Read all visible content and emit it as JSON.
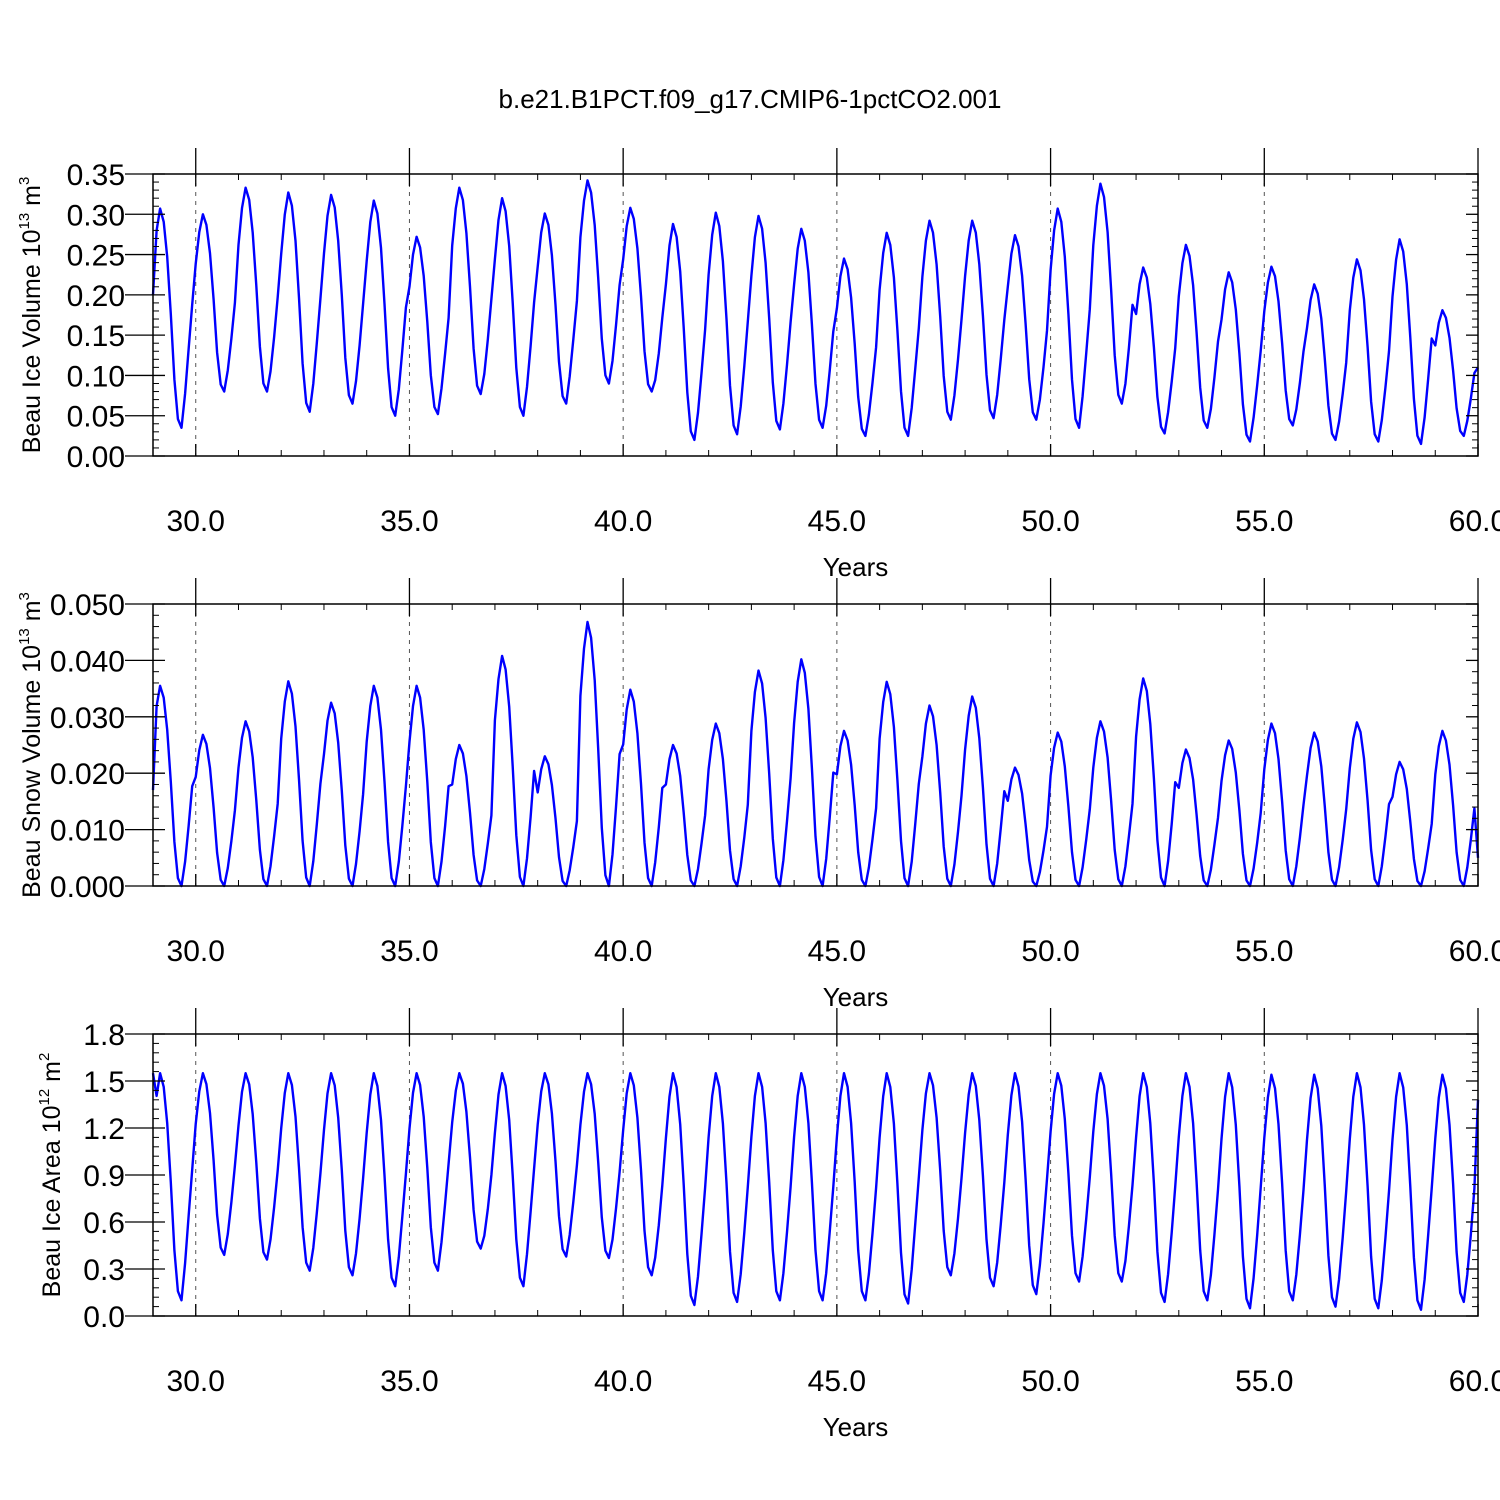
{
  "figure": {
    "title": "b.e21.B1PCT.f09_g17.CMIP6-1pctCO2.001"
  },
  "chart_data": [
    {
      "type": "line",
      "title": "",
      "xlabel": "Years",
      "ylabel": "Beau Ice Volume",
      "yunit": {
        "base": "10",
        "exp": "13",
        "unit": "m",
        "unit_exp": "3"
      },
      "xlim": [
        29.0,
        60.0
      ],
      "ylim": [
        0.0,
        0.35
      ],
      "xticks": [
        30,
        35,
        40,
        45,
        50,
        55,
        60
      ],
      "xticklabels": [
        "30.0",
        "35.0",
        "40.0",
        "45.0",
        "50.0",
        "55.0",
        "60.0"
      ],
      "yticks": [
        0,
        0.05,
        0.1,
        0.15,
        0.2,
        0.25,
        0.3,
        0.35
      ],
      "yticklabels": [
        "0.00",
        "0.05",
        "0.10",
        "0.15",
        "0.20",
        "0.25",
        "0.30",
        "0.35"
      ],
      "grid": "dashed vertical lines at major x ticks",
      "color": "#0000ff",
      "annual": {
        "year": [
          29,
          30,
          31,
          32,
          33,
          34,
          35,
          36,
          37,
          38,
          39,
          40,
          41,
          42,
          43,
          44,
          45,
          46,
          47,
          48,
          49,
          50,
          51,
          52,
          53,
          54,
          55,
          56,
          57,
          58,
          59
        ],
        "max": [
          0.307,
          0.3,
          0.333,
          0.327,
          0.324,
          0.317,
          0.272,
          0.333,
          0.32,
          0.301,
          0.342,
          0.308,
          0.288,
          0.302,
          0.298,
          0.282,
          0.245,
          0.277,
          0.292,
          0.292,
          0.274,
          0.307,
          0.338,
          0.234,
          0.262,
          0.228,
          0.235,
          0.213,
          0.244,
          0.269,
          0.181
        ],
        "min": [
          0.035,
          0.08,
          0.08,
          0.055,
          0.065,
          0.05,
          0.052,
          0.077,
          0.05,
          0.065,
          0.09,
          0.08,
          0.02,
          0.027,
          0.033,
          0.035,
          0.025,
          0.025,
          0.045,
          0.047,
          0.045,
          0.035,
          0.065,
          0.028,
          0.035,
          0.018,
          0.038,
          0.02,
          0.018,
          0.015,
          0.025
        ]
      },
      "start_value": 0.2,
      "end_value": 0.11,
      "series": [
        {
          "values": []
        }
      ]
    },
    {
      "type": "line",
      "title": "",
      "xlabel": "Years",
      "ylabel": "Beau Snow Volume",
      "yunit": {
        "base": "10",
        "exp": "13",
        "unit": "m",
        "unit_exp": "3"
      },
      "xlim": [
        29.0,
        60.0
      ],
      "ylim": [
        0.0,
        0.05
      ],
      "xticks": [
        30,
        35,
        40,
        45,
        50,
        55,
        60
      ],
      "xticklabels": [
        "30.0",
        "35.0",
        "40.0",
        "45.0",
        "50.0",
        "55.0",
        "60.0"
      ],
      "yticks": [
        0,
        0.01,
        0.02,
        0.03,
        0.04,
        0.05
      ],
      "yticklabels": [
        "0.000",
        "0.010",
        "0.020",
        "0.030",
        "0.040",
        "0.050"
      ],
      "grid": "dashed vertical lines at major x ticks",
      "color": "#0000ff",
      "annual": {
        "year": [
          29,
          30,
          31,
          32,
          33,
          34,
          35,
          36,
          37,
          38,
          39,
          40,
          41,
          42,
          43,
          44,
          45,
          46,
          47,
          48,
          49,
          50,
          51,
          52,
          53,
          54,
          55,
          56,
          57,
          58,
          59
        ],
        "max": [
          0.0355,
          0.0268,
          0.0292,
          0.0363,
          0.0325,
          0.0355,
          0.0355,
          0.025,
          0.0408,
          0.023,
          0.0468,
          0.0348,
          0.025,
          0.0288,
          0.0382,
          0.0402,
          0.0275,
          0.0362,
          0.032,
          0.0336,
          0.021,
          0.0272,
          0.0292,
          0.0368,
          0.0242,
          0.0258,
          0.0288,
          0.0272,
          0.029,
          0.022,
          0.0275
        ],
        "min": [
          0.0,
          0.0,
          0.0,
          0.0,
          0.0,
          0.0,
          0.0,
          0.0,
          0.0,
          0.0,
          0.0,
          0.0,
          0.0,
          0.0,
          0.0,
          0.0,
          0.0,
          0.0,
          0.0,
          0.0,
          0.0,
          0.0,
          0.0,
          0.0,
          0.0,
          0.0,
          0.0,
          0.0,
          0.0,
          0.0,
          0.0
        ]
      },
      "start_value": 0.017,
      "end_value": 0.005,
      "series": [
        {
          "values": []
        }
      ]
    },
    {
      "type": "line",
      "title": "",
      "xlabel": "Years",
      "ylabel": "Beau Ice Area",
      "yunit": {
        "base": "10",
        "exp": "12",
        "unit": "m",
        "unit_exp": "2"
      },
      "xlim": [
        29.0,
        60.0
      ],
      "ylim": [
        0.0,
        1.8
      ],
      "xticks": [
        30,
        35,
        40,
        45,
        50,
        55,
        60
      ],
      "xticklabels": [
        "30.0",
        "35.0",
        "40.0",
        "45.0",
        "50.0",
        "55.0",
        "60.0"
      ],
      "yticks": [
        0,
        0.3,
        0.6,
        0.9,
        1.2,
        1.5,
        1.8
      ],
      "yticklabels": [
        "0.0",
        "0.3",
        "0.6",
        "0.9",
        "1.2",
        "1.5",
        "1.8"
      ],
      "grid": "dashed vertical lines at major x ticks",
      "color": "#0000ff",
      "annual": {
        "year": [
          29,
          30,
          31,
          32,
          33,
          34,
          35,
          36,
          37,
          38,
          39,
          40,
          41,
          42,
          43,
          44,
          45,
          46,
          47,
          48,
          49,
          50,
          51,
          52,
          53,
          54,
          55,
          56,
          57,
          58,
          59
        ],
        "max": [
          1.55,
          1.55,
          1.55,
          1.55,
          1.55,
          1.55,
          1.55,
          1.55,
          1.55,
          1.55,
          1.55,
          1.55,
          1.55,
          1.55,
          1.55,
          1.55,
          1.55,
          1.55,
          1.55,
          1.55,
          1.55,
          1.55,
          1.55,
          1.55,
          1.55,
          1.55,
          1.54,
          1.54,
          1.55,
          1.55,
          1.54
        ],
        "min": [
          0.1,
          0.39,
          0.36,
          0.29,
          0.26,
          0.19,
          0.29,
          0.43,
          0.19,
          0.38,
          0.37,
          0.26,
          0.07,
          0.09,
          0.1,
          0.1,
          0.1,
          0.08,
          0.26,
          0.19,
          0.14,
          0.22,
          0.22,
          0.09,
          0.1,
          0.05,
          0.1,
          0.06,
          0.05,
          0.04,
          0.09
        ]
      },
      "start_value": 1.55,
      "end_value": 1.38,
      "series": [
        {
          "values": []
        }
      ]
    }
  ]
}
